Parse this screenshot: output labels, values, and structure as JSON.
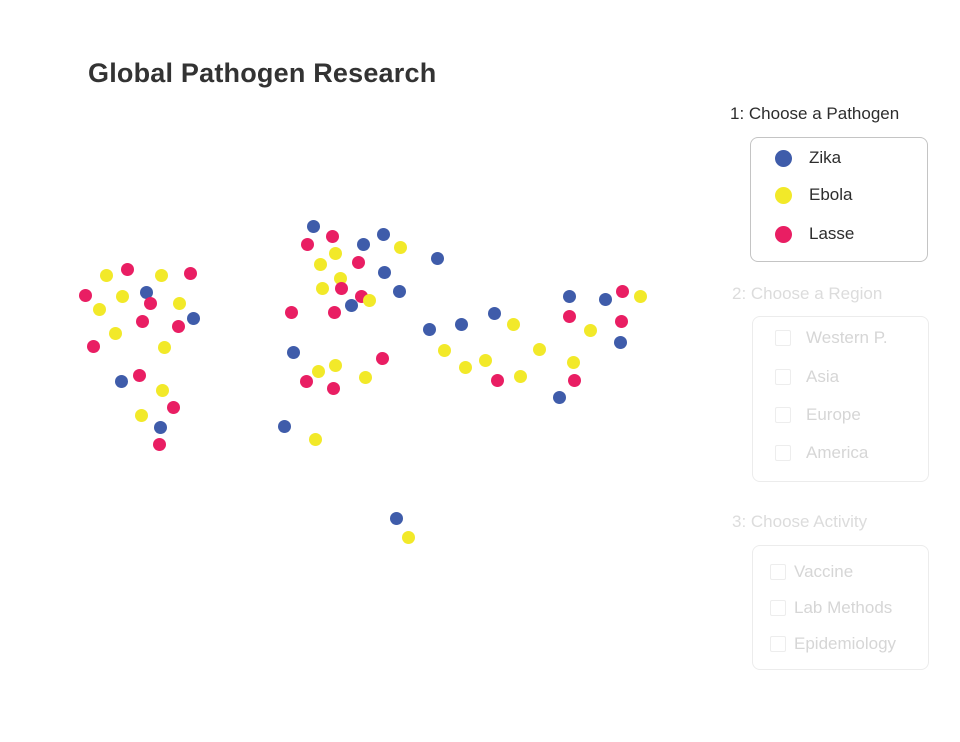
{
  "page": {
    "title": "Global Pathogen Research"
  },
  "colors": {
    "zika": "#3f5caa",
    "ebola": "#f2e929",
    "lasse": "#e91e63"
  },
  "step1": {
    "title": "1: Choose a Pathogen",
    "options": [
      {
        "label": "Zika",
        "color": "#3f5caa"
      },
      {
        "label": "Ebola",
        "color": "#f2e929"
      },
      {
        "label": "Lasse",
        "color": "#e91e63"
      }
    ]
  },
  "step2": {
    "title": "2: Choose a Region",
    "options": [
      {
        "label": "Western P."
      },
      {
        "label": "Asia"
      },
      {
        "label": "Europe"
      },
      {
        "label": "America"
      }
    ]
  },
  "step3": {
    "title": "3: Choose Activity",
    "options": [
      {
        "label": "Vaccine"
      },
      {
        "label": "Lab Methods"
      },
      {
        "label": "Epidemiology"
      }
    ]
  }
}
